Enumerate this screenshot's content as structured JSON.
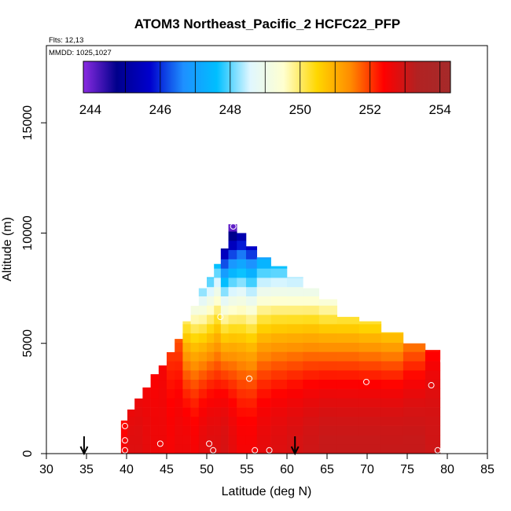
{
  "chart_data": {
    "type": "heatmap",
    "title": "ATOM3 Northeast_Pacific_2 HCFC22_PFP",
    "flights_label": "Flts: 12,13",
    "dates_label": "MMDD: 1025,1027",
    "xlabel": "Latitude (deg N)",
    "ylabel": "Altitude (m)",
    "xlim": [
      30,
      85
    ],
    "ylim": [
      0,
      18500
    ],
    "x_ticks": [
      "30",
      "35",
      "40",
      "45",
      "50",
      "55",
      "60",
      "65",
      "70",
      "75",
      "80",
      "85"
    ],
    "y_ticks": [
      "0",
      "5000",
      "10000",
      "15000"
    ],
    "colorbar": {
      "min": 243.8,
      "max": 254.3,
      "tick_labels": [
        "244",
        "246",
        "248",
        "250",
        "252",
        "254"
      ],
      "colors": [
        "#8a2be2",
        "#00008b",
        "#0000cd",
        "#1e90ff",
        "#00bfff",
        "#e0f7ff",
        "#ffffd0",
        "#ffd700",
        "#ff8c00",
        "#ff0000",
        "#b22222",
        "#a52a2a"
      ]
    },
    "profiles": [
      {
        "lat": 39.7,
        "bottom": 0,
        "top": 1500,
        "values": [
          252.5,
          252.3
        ]
      },
      {
        "lat": 40.5,
        "bottom": 0,
        "top": 2000,
        "values": [
          252.8,
          252.6
        ]
      },
      {
        "lat": 41.5,
        "bottom": 0,
        "top": 2500,
        "values": [
          252.8,
          252.6
        ]
      },
      {
        "lat": 42.5,
        "bottom": 0,
        "top": 3000,
        "values": [
          252.7,
          252.5
        ]
      },
      {
        "lat": 43.5,
        "bottom": 0,
        "top": 3600,
        "values": [
          252.6,
          252.4
        ]
      },
      {
        "lat": 44.5,
        "bottom": 0,
        "top": 4000,
        "values": [
          252.6,
          252.5
        ]
      },
      {
        "lat": 45.5,
        "bottom": 0,
        "top": 4600,
        "values": [
          252.5,
          252.0
        ]
      },
      {
        "lat": 46.5,
        "bottom": 0,
        "top": 5200,
        "values": [
          252.6,
          251.8
        ]
      },
      {
        "lat": 47.5,
        "bottom": 0,
        "top": 6000,
        "values": [
          252.6,
          250.0
        ]
      },
      {
        "lat": 48.5,
        "bottom": 0,
        "top": 6700,
        "values": [
          252.5,
          249.0
        ]
      },
      {
        "lat": 49.5,
        "bottom": 0,
        "top": 7500,
        "values": [
          252.7,
          248.0
        ]
      },
      {
        "lat": 50.5,
        "bottom": 0,
        "top": 8000,
        "values": [
          252.8,
          247.7
        ]
      },
      {
        "lat": 51.3,
        "bottom": 0,
        "top": 8600,
        "values": [
          252.8,
          247.5
        ]
      },
      {
        "lat": 52.2,
        "bottom": 0,
        "top": 9300,
        "values": [
          252.9,
          245.0
        ]
      },
      {
        "lat": 53.2,
        "bottom": 0,
        "top": 10400,
        "values": [
          252.7,
          243.8
        ]
      },
      {
        "lat": 54.3,
        "bottom": 0,
        "top": 10000,
        "values": [
          252.5,
          245.0
        ]
      },
      {
        "lat": 55.5,
        "bottom": 0,
        "top": 9400,
        "values": [
          252.5,
          245.5
        ]
      },
      {
        "lat": 57.0,
        "bottom": 0,
        "top": 8900,
        "values": [
          252.7,
          247.0
        ]
      },
      {
        "lat": 59.0,
        "bottom": 0,
        "top": 8500,
        "values": [
          252.8,
          247.6
        ]
      },
      {
        "lat": 61.0,
        "bottom": 0,
        "top": 8000,
        "values": [
          252.9,
          248.2
        ]
      },
      {
        "lat": 63.0,
        "bottom": 0,
        "top": 7500,
        "values": [
          253.0,
          248.8
        ]
      },
      {
        "lat": 65.0,
        "bottom": 0,
        "top": 7000,
        "values": [
          253.1,
          249.2
        ]
      },
      {
        "lat": 67.5,
        "bottom": 0,
        "top": 6200,
        "values": [
          253.1,
          250.1
        ]
      },
      {
        "lat": 70.5,
        "bottom": 0,
        "top": 6000,
        "values": [
          253.1,
          250.2
        ]
      },
      {
        "lat": 73.0,
        "bottom": 0,
        "top": 5500,
        "values": [
          253.1,
          250.6
        ]
      },
      {
        "lat": 76.0,
        "bottom": 0,
        "top": 5000,
        "values": [
          253.1,
          251.5
        ]
      },
      {
        "lat": 78.5,
        "bottom": 0,
        "top": 4700,
        "values": [
          253.0,
          252.3
        ]
      }
    ],
    "samples": [
      {
        "lat": 39.8,
        "alt": 1250
      },
      {
        "lat": 39.8,
        "alt": 600
      },
      {
        "lat": 39.8,
        "alt": 150
      },
      {
        "lat": 44.2,
        "alt": 450
      },
      {
        "lat": 50.3,
        "alt": 450
      },
      {
        "lat": 50.8,
        "alt": 150
      },
      {
        "lat": 51.7,
        "alt": 6200
      },
      {
        "lat": 53.3,
        "alt": 10300
      },
      {
        "lat": 55.3,
        "alt": 3400
      },
      {
        "lat": 56.0,
        "alt": 150
      },
      {
        "lat": 57.8,
        "alt": 150
      },
      {
        "lat": 69.9,
        "alt": 3250
      },
      {
        "lat": 78.0,
        "alt": 3100
      },
      {
        "lat": 78.8,
        "alt": 150
      },
      {
        "lat": 79.5,
        "alt": 4200
      }
    ],
    "arrows": [
      {
        "lat": 34.7
      },
      {
        "lat": 61.0
      }
    ]
  }
}
